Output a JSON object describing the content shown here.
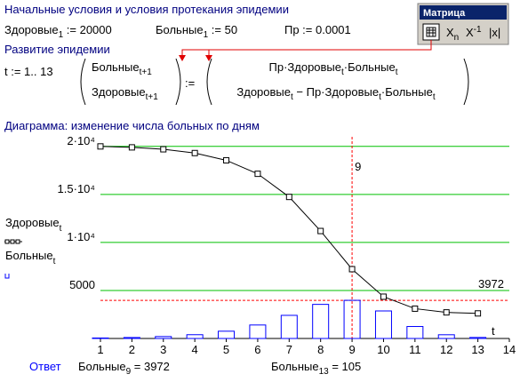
{
  "header": {
    "title": "Начальные условия и условия протекания эпидемии"
  },
  "initial": [
    [
      {
        "t": "Здоровые"
      },
      {
        "sub": "1"
      },
      {
        "t": " := 20000"
      }
    ],
    [
      {
        "t": "Больные"
      },
      {
        "sub": "1"
      },
      {
        "t": " := 50"
      }
    ],
    [
      {
        "t": "Пр := 0.0001"
      }
    ]
  ],
  "section": "Развитие эпидемии",
  "range": "t := 1.. 13",
  "matrix": {
    "left": [
      [
        {
          "t": "Больные"
        },
        {
          "sub": "t+1"
        }
      ],
      [
        {
          "t": "Здоровые"
        },
        {
          "sub": "t+1"
        }
      ]
    ],
    "assign": ":=",
    "right": [
      [
        {
          "t": "Пр·Здоровые"
        },
        {
          "sub": "t"
        },
        {
          "t": "·Больные"
        },
        {
          "sub": "t"
        }
      ],
      [
        {
          "t": "Здоровые"
        },
        {
          "sub": "t"
        },
        {
          "t": " − Пр·Здоровые"
        },
        {
          "sub": "t"
        },
        {
          "t": "·Больные"
        },
        {
          "sub": "t"
        }
      ]
    ]
  },
  "toolbar": {
    "title": "Матрица",
    "buttons": [
      [
        {
          "t": "X"
        },
        {
          "sub": "n"
        }
      ],
      [
        {
          "t": "X"
        },
        {
          "sup": "-1"
        }
      ],
      [
        {
          "t": "|x|"
        }
      ]
    ]
  },
  "chart_caption": "Диаграмма: изменение числа больных по дням",
  "chart_data": {
    "type": "combo",
    "x": [
      1,
      2,
      3,
      4,
      5,
      6,
      7,
      8,
      9,
      10,
      11,
      12,
      13
    ],
    "series": [
      {
        "name": "Здоровые",
        "name_sub": "t",
        "type": "line",
        "color": "#000000",
        "values": [
          20000,
          19900,
          19701,
          19309,
          18552,
          17148,
          14739,
          11190,
          7218,
          4351,
          3104,
          2717,
          2611
        ]
      },
      {
        "name": "Больные",
        "name_sub": "t",
        "type": "bar",
        "color": "#0000ff",
        "values": [
          50,
          100,
          199,
          392,
          757,
          1404,
          2408,
          3550,
          3972,
          2867,
          1247,
          387,
          105
        ]
      }
    ],
    "xlim": [
      1,
      14
    ],
    "xticks": [
      1,
      2,
      3,
      4,
      5,
      6,
      7,
      8,
      9,
      10,
      11,
      12,
      13,
      14
    ],
    "ylim": [
      0,
      21000
    ],
    "yticks": [
      5000,
      {
        "value": 10000,
        "label": "1·10⁴"
      },
      {
        "value": 15000,
        "label": "1.5·10⁴"
      },
      {
        "value": 20000,
        "label": "2·10⁴"
      }
    ],
    "xlabel": "t",
    "grid": true,
    "grid_color": "#00c000",
    "markers": [
      {
        "axis": "x",
        "value": 9
      },
      {
        "axis": "y",
        "value": 3972
      }
    ],
    "marker_color": "#ff0000"
  },
  "answer": {
    "label": "Ответ",
    "items": [
      [
        {
          "t": "Больные"
        },
        {
          "sub": "9"
        },
        {
          "t": " = 3972"
        }
      ],
      [
        {
          "t": "Больные"
        },
        {
          "sub": "13"
        },
        {
          "t": " = 105"
        }
      ]
    ]
  }
}
